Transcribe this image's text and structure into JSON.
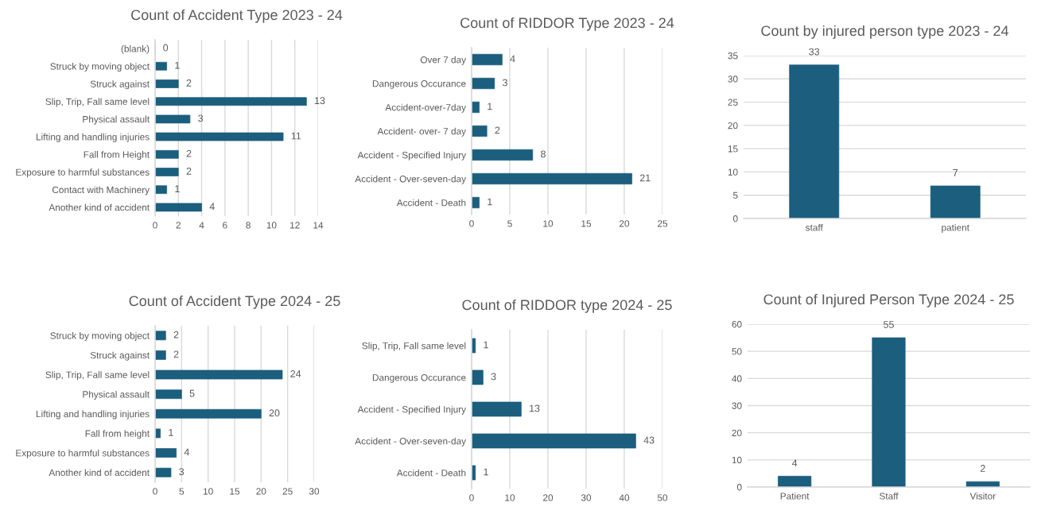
{
  "chart_data": [
    {
      "type": "bar",
      "orientation": "horizontal",
      "title": "Count of Accident Type 2023 - 24",
      "categories": [
        "(blank)",
        "Struck by moving object",
        "Struck against",
        "Slip, Trip, Fall same level",
        "Physical assault",
        "Lifting and handling injuries",
        "Fall from Height",
        "Exposure to harmful substances",
        "Contact with Machinery",
        "Another kind of accident"
      ],
      "values": [
        0,
        1,
        2,
        13,
        3,
        11,
        2,
        2,
        1,
        4
      ],
      "color": "#1b5e7e",
      "xlim": [
        0,
        14
      ],
      "xticks": [
        0,
        2,
        4,
        6,
        8,
        10,
        12,
        14
      ],
      "grid": "x",
      "data_labels": true
    },
    {
      "type": "bar",
      "orientation": "horizontal",
      "title": "Count of RIDDOR Type 2023 - 24",
      "categories": [
        "Over 7 day",
        "Dangerous Occurance",
        "Accident-over-7day",
        "Accident- over- 7 day",
        "Accident - Specified Injury",
        "Accident - Over-seven-day",
        "Accident - Death"
      ],
      "values": [
        4,
        3,
        1,
        2,
        8,
        21,
        1
      ],
      "color": "#1b5e7e",
      "xlim": [
        0,
        25
      ],
      "xticks": [
        0,
        5,
        10,
        15,
        20,
        25
      ],
      "grid": "x",
      "data_labels": true
    },
    {
      "type": "bar",
      "title": "Count by injured person type 2023 - 24",
      "categories": [
        "staff",
        "patient"
      ],
      "values": [
        33,
        7
      ],
      "color": "#1b5e7e",
      "ylim": [
        0,
        35
      ],
      "yticks": [
        0,
        5,
        10,
        15,
        20,
        25,
        30,
        35
      ],
      "grid": "y",
      "data_labels": true
    },
    {
      "type": "bar",
      "orientation": "horizontal",
      "title": "Count of Accident Type 2024 - 25",
      "categories": [
        "Struck by moving object",
        "Struck against",
        "Slip, Trip, Fall same level",
        "Physical assault",
        "Lifting and handling injuries",
        "Fall from height",
        "Exposure to harmful substances",
        "Another kind of accident"
      ],
      "values": [
        2,
        2,
        24,
        5,
        20,
        1,
        4,
        3
      ],
      "color": "#1b5e7e",
      "xlim": [
        0,
        30
      ],
      "xticks": [
        0,
        5,
        10,
        15,
        20,
        25,
        30
      ],
      "grid": "x",
      "data_labels": true
    },
    {
      "type": "bar",
      "orientation": "horizontal",
      "title": "Count of RIDDOR type 2024 - 25",
      "categories": [
        "Slip, Trip, Fall same level",
        "Dangerous Occurance",
        "Accident - Specified Injury",
        "Accident - Over-seven-day",
        "Accident - Death"
      ],
      "values": [
        1,
        3,
        13,
        43,
        1
      ],
      "color": "#1b5e7e",
      "xlim": [
        0,
        50
      ],
      "xticks": [
        0,
        10,
        20,
        30,
        40,
        50
      ],
      "grid": "x",
      "data_labels": true
    },
    {
      "type": "bar",
      "title": "Count of Injured Person Type 2024 - 25",
      "categories": [
        "Patient",
        "Staff",
        "Visitor"
      ],
      "values": [
        4,
        55,
        2
      ],
      "color": "#1b5e7e",
      "ylim": [
        0,
        60
      ],
      "yticks": [
        0,
        10,
        20,
        30,
        40,
        50,
        60
      ],
      "grid": "y",
      "data_labels": true
    }
  ]
}
